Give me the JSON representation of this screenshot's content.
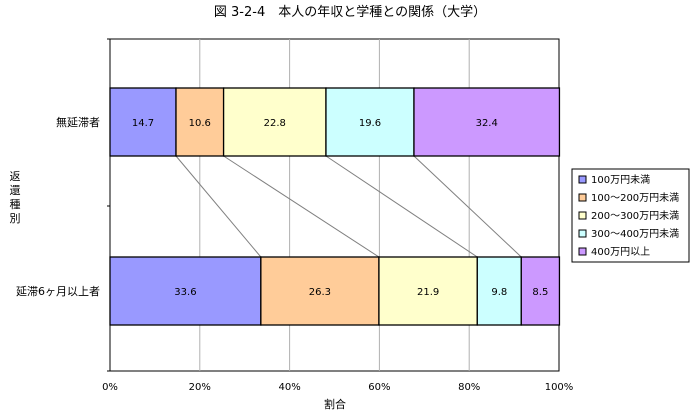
{
  "chart_data": {
    "type": "bar",
    "orientation": "horizontal",
    "stacked": true,
    "title": "図 3-2-4　本人の年収と学種との関係（大学）",
    "xlabel": "割合",
    "ylabel": "返還種別",
    "xlim": [
      0,
      100
    ],
    "xticks": [
      "0%",
      "20%",
      "40%",
      "60%",
      "80%",
      "100%"
    ],
    "categories": [
      "無延滞者",
      "延滞6ヶ月以上者"
    ],
    "series": [
      {
        "name": "100万円未満",
        "values": [
          14.7,
          33.6
        ],
        "color": "#9999ff"
      },
      {
        "name": "100～200万円未満",
        "values": [
          10.6,
          26.3
        ],
        "color": "#ffcc99"
      },
      {
        "name": "200～300万円未満",
        "values": [
          22.8,
          21.9
        ],
        "color": "#ffffcc"
      },
      {
        "name": "300～400万円未満",
        "values": [
          19.6,
          9.8
        ],
        "color": "#ccffff"
      },
      {
        "name": "400万円以上",
        "values": [
          32.4,
          8.5
        ],
        "color": "#cc99ff"
      }
    ],
    "grid": true,
    "legend": "right",
    "series_lines": true
  }
}
